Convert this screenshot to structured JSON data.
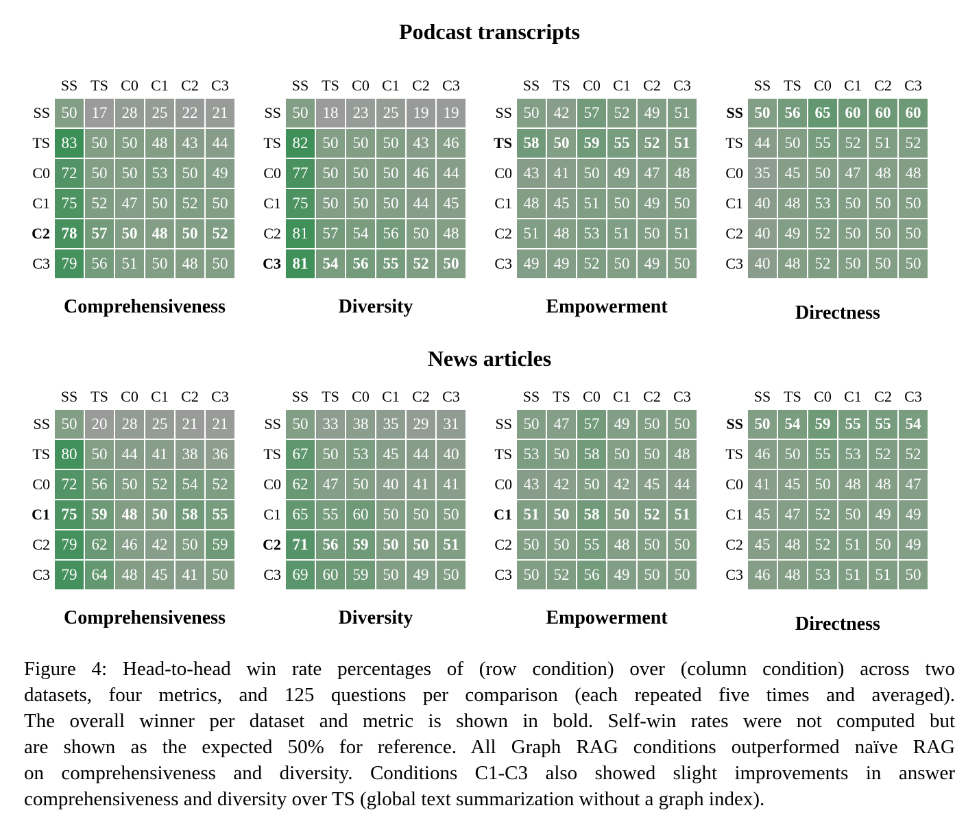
{
  "figure": {
    "sections": [
      {
        "title": "Podcast transcripts",
        "chart_indices": [
          0,
          1,
          2,
          3
        ]
      },
      {
        "title": "News articles",
        "chart_indices": [
          4,
          5,
          6,
          7
        ]
      }
    ],
    "caption_lines": [
      "Figure 4: Head-to-head win rate percentages of (row condition) over (column condition) across two",
      "datasets, four metrics, and 125 questions per comparison (each repeated five times and averaged).",
      "The overall winner per dataset and metric is shown in bold. Self-win rates were not computed but",
      "are shown as the expected 50% for reference. All Graph RAG conditions outperformed naïve RAG",
      "on comprehensiveness and diversity. Conditions C1-C3 also showed slight improvements in answer",
      "comprehensiveness and diversity over TS (global text summarization without a graph index)."
    ]
  },
  "heatmap_colors": {
    "low": "#9b9b9b",
    "mid": "#829e85",
    "high": "#3c8f57",
    "cell_text": "#ffffff",
    "low_anchor": 17,
    "mid_anchor": 50,
    "high_anchor": 83
  },
  "chart_data": [
    {
      "type": "heatmap",
      "dataset": "Podcast transcripts",
      "metric": "Comprehensiveness",
      "cols": [
        "SS",
        "TS",
        "C0",
        "C1",
        "C2",
        "C3"
      ],
      "rows": [
        "SS",
        "TS",
        "C0",
        "C1",
        "C2",
        "C3"
      ],
      "bold_row": "C2",
      "values_unit": "win rate %",
      "values": [
        [
          50,
          17,
          28,
          25,
          22,
          21
        ],
        [
          83,
          50,
          50,
          48,
          43,
          44
        ],
        [
          72,
          50,
          50,
          53,
          50,
          49
        ],
        [
          75,
          52,
          47,
          50,
          52,
          50
        ],
        [
          78,
          57,
          50,
          48,
          50,
          52
        ],
        [
          79,
          56,
          51,
          50,
          48,
          50
        ]
      ]
    },
    {
      "type": "heatmap",
      "dataset": "Podcast transcripts",
      "metric": "Diversity",
      "cols": [
        "SS",
        "TS",
        "C0",
        "C1",
        "C2",
        "C3"
      ],
      "rows": [
        "SS",
        "TS",
        "C0",
        "C1",
        "C2",
        "C3"
      ],
      "bold_row": "C3",
      "values_unit": "win rate %",
      "values": [
        [
          50,
          18,
          23,
          25,
          19,
          19
        ],
        [
          82,
          50,
          50,
          50,
          43,
          46
        ],
        [
          77,
          50,
          50,
          50,
          46,
          44
        ],
        [
          75,
          50,
          50,
          50,
          44,
          45
        ],
        [
          81,
          57,
          54,
          56,
          50,
          48
        ],
        [
          81,
          54,
          56,
          55,
          52,
          50
        ]
      ]
    },
    {
      "type": "heatmap",
      "dataset": "Podcast transcripts",
      "metric": "Empowerment",
      "cols": [
        "SS",
        "TS",
        "C0",
        "C1",
        "C2",
        "C3"
      ],
      "rows": [
        "SS",
        "TS",
        "C0",
        "C1",
        "C2",
        "C3"
      ],
      "bold_row": "TS",
      "values_unit": "win rate %",
      "values": [
        [
          50,
          42,
          57,
          52,
          49,
          51
        ],
        [
          58,
          50,
          59,
          55,
          52,
          51
        ],
        [
          43,
          41,
          50,
          49,
          47,
          48
        ],
        [
          48,
          45,
          51,
          50,
          49,
          50
        ],
        [
          51,
          48,
          53,
          51,
          50,
          51
        ],
        [
          49,
          49,
          52,
          50,
          49,
          50
        ]
      ]
    },
    {
      "type": "heatmap",
      "dataset": "Podcast transcripts",
      "metric": "Directness",
      "cols": [
        "SS",
        "TS",
        "C0",
        "C1",
        "C2",
        "C3"
      ],
      "rows": [
        "SS",
        "TS",
        "C0",
        "C1",
        "C2",
        "C3"
      ],
      "bold_row": "SS",
      "values_unit": "win rate %",
      "values": [
        [
          50,
          56,
          65,
          60,
          60,
          60
        ],
        [
          44,
          50,
          55,
          52,
          51,
          52
        ],
        [
          35,
          45,
          50,
          47,
          48,
          48
        ],
        [
          40,
          48,
          53,
          50,
          50,
          50
        ],
        [
          40,
          49,
          52,
          50,
          50,
          50
        ],
        [
          40,
          48,
          52,
          50,
          50,
          50
        ]
      ]
    },
    {
      "type": "heatmap",
      "dataset": "News articles",
      "metric": "Comprehensiveness",
      "cols": [
        "SS",
        "TS",
        "C0",
        "C1",
        "C2",
        "C3"
      ],
      "rows": [
        "SS",
        "TS",
        "C0",
        "C1",
        "C2",
        "C3"
      ],
      "bold_row": "C1",
      "values_unit": "win rate %",
      "values": [
        [
          50,
          20,
          28,
          25,
          21,
          21
        ],
        [
          80,
          50,
          44,
          41,
          38,
          36
        ],
        [
          72,
          56,
          50,
          52,
          54,
          52
        ],
        [
          75,
          59,
          48,
          50,
          58,
          55
        ],
        [
          79,
          62,
          46,
          42,
          50,
          59
        ],
        [
          79,
          64,
          48,
          45,
          41,
          50
        ]
      ]
    },
    {
      "type": "heatmap",
      "dataset": "News articles",
      "metric": "Diversity",
      "cols": [
        "SS",
        "TS",
        "C0",
        "C1",
        "C2",
        "C3"
      ],
      "rows": [
        "SS",
        "TS",
        "C0",
        "C1",
        "C2",
        "C3"
      ],
      "bold_row": "C2",
      "values_unit": "win rate %",
      "values": [
        [
          50,
          33,
          38,
          35,
          29,
          31
        ],
        [
          67,
          50,
          53,
          45,
          44,
          40
        ],
        [
          62,
          47,
          50,
          40,
          41,
          41
        ],
        [
          65,
          55,
          60,
          50,
          50,
          50
        ],
        [
          71,
          56,
          59,
          50,
          50,
          51
        ],
        [
          69,
          60,
          59,
          50,
          49,
          50
        ]
      ]
    },
    {
      "type": "heatmap",
      "dataset": "News articles",
      "metric": "Empowerment",
      "cols": [
        "SS",
        "TS",
        "C0",
        "C1",
        "C2",
        "C3"
      ],
      "rows": [
        "SS",
        "TS",
        "C0",
        "C1",
        "C2",
        "C3"
      ],
      "bold_row": "C1",
      "values_unit": "win rate %",
      "values": [
        [
          50,
          47,
          57,
          49,
          50,
          50
        ],
        [
          53,
          50,
          58,
          50,
          50,
          48
        ],
        [
          43,
          42,
          50,
          42,
          45,
          44
        ],
        [
          51,
          50,
          58,
          50,
          52,
          51
        ],
        [
          50,
          50,
          55,
          48,
          50,
          50
        ],
        [
          50,
          52,
          56,
          49,
          50,
          50
        ]
      ]
    },
    {
      "type": "heatmap",
      "dataset": "News articles",
      "metric": "Directness",
      "cols": [
        "SS",
        "TS",
        "C0",
        "C1",
        "C2",
        "C3"
      ],
      "rows": [
        "SS",
        "TS",
        "C0",
        "C1",
        "C2",
        "C3"
      ],
      "bold_row": "SS",
      "values_unit": "win rate %",
      "values": [
        [
          50,
          54,
          59,
          55,
          55,
          54
        ],
        [
          46,
          50,
          55,
          53,
          52,
          52
        ],
        [
          41,
          45,
          50,
          48,
          48,
          47
        ],
        [
          45,
          47,
          52,
          50,
          49,
          49
        ],
        [
          45,
          48,
          52,
          51,
          50,
          49
        ],
        [
          46,
          48,
          53,
          51,
          51,
          50
        ]
      ]
    }
  ]
}
